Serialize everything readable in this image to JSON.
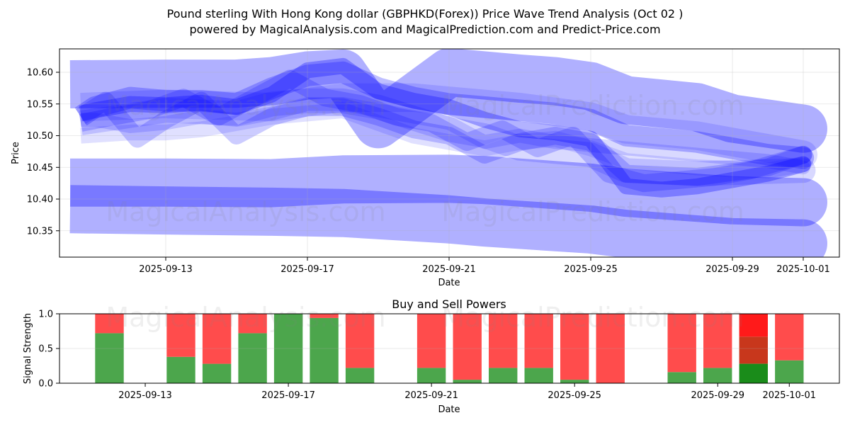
{
  "page": {
    "title_line1": "Pound sterling With Hong Kong dollar (GBPHKD(Forex)) Price Wave Trend Analysis (Oct 02 )",
    "title_line2": "powered by MagicalAnalysis.com and MagicalPrediction.com and Predict-Price.com"
  },
  "watermarks": {
    "left": "MagicalAnalysis.com",
    "right": "MagicalPrediction.com"
  },
  "colors": {
    "band": "#0000ff",
    "grid": "#b0b0b0",
    "buy": "#4ca64c",
    "sell": "#ff4c4c",
    "buy_strong": "#1a8c1a",
    "sell_strong": "#ff1a1a",
    "mixed": "#c8371c"
  },
  "chart_data": [
    {
      "type": "line",
      "title": "Pound sterling With Hong Kong dollar (GBPHKD(Forex)) Price Wave Trend Analysis (Oct 02 )",
      "xlabel": "Date",
      "ylabel": "Price",
      "x_origin": "2025-09-10",
      "x_unit": "days since x_origin",
      "xlim_days": [
        0,
        22.02
      ],
      "ylim": [
        10.3084,
        10.6369
      ],
      "grid": true,
      "x_ticks": [
        "2025-09-13",
        "2025-09-17",
        "2025-09-21",
        "2025-09-25",
        "2025-09-29",
        "2025-10-01"
      ],
      "y_ticks": [
        "10.35",
        "10.40",
        "10.45",
        "10.50",
        "10.55",
        "10.60"
      ],
      "series": [
        {
          "name": "wave-band-upper",
          "spread": 0.076,
          "opacity": 0.31,
          "points": [
            [
              0.3,
              10.581
            ],
            [
              3,
              10.582
            ],
            [
              5,
              10.582
            ],
            [
              6,
              10.586
            ],
            [
              7,
              10.595
            ],
            [
              8,
              10.598
            ],
            [
              9,
              10.518
            ],
            [
              11,
              10.6
            ],
            [
              13,
              10.59
            ],
            [
              14,
              10.586
            ],
            [
              15,
              10.578
            ],
            [
              16,
              10.556
            ],
            [
              18,
              10.545
            ],
            [
              19,
              10.527
            ],
            [
              21,
              10.511
            ]
          ]
        },
        {
          "name": "wave-band-lower-1",
          "spread": 0.076,
          "opacity": 0.31,
          "points": [
            [
              0.3,
              10.426
            ],
            [
              3,
              10.426
            ],
            [
              6,
              10.425
            ],
            [
              8,
              10.431
            ],
            [
              11,
              10.432
            ],
            [
              12,
              10.43
            ],
            [
              15,
              10.418
            ],
            [
              16,
              10.41
            ],
            [
              19,
              10.398
            ],
            [
              21,
              10.395
            ]
          ]
        },
        {
          "name": "wave-band-lower-2",
          "spread": 0.076,
          "opacity": 0.31,
          "points": [
            [
              0.3,
              10.384
            ],
            [
              3,
              10.382
            ],
            [
              6,
              10.38
            ],
            [
              8,
              10.378
            ],
            [
              11,
              10.368
            ],
            [
              12,
              10.363
            ],
            [
              15,
              10.352
            ],
            [
              16,
              10.345
            ],
            [
              19,
              10.332
            ],
            [
              21,
              10.33
            ]
          ]
        },
        {
          "name": "wave-strand-1",
          "spread": 0.025,
          "opacity": 0.3,
          "points": [
            [
              0.6,
              10.535
            ],
            [
              1,
              10.54
            ],
            [
              2,
              10.55
            ],
            [
              3,
              10.548
            ],
            [
              4,
              10.552
            ],
            [
              5,
              10.545
            ],
            [
              6,
              10.565
            ],
            [
              7,
              10.603
            ],
            [
              8,
              10.61
            ],
            [
              9,
              10.57
            ],
            [
              10,
              10.555
            ],
            [
              11,
              10.545
            ],
            [
              12,
              10.525
            ],
            [
              13,
              10.51
            ],
            [
              14,
              10.505
            ],
            [
              15,
              10.495
            ],
            [
              15.6,
              10.45
            ],
            [
              16,
              10.42
            ],
            [
              17,
              10.415
            ],
            [
              18,
              10.42
            ],
            [
              19,
              10.43
            ],
            [
              20,
              10.44
            ],
            [
              21,
              10.455
            ]
          ]
        },
        {
          "name": "wave-strand-2",
          "spread": 0.034,
          "opacity": 0.25,
          "points": [
            [
              0.6,
              10.53
            ],
            [
              1,
              10.545
            ],
            [
              2,
              10.56
            ],
            [
              3,
              10.555
            ],
            [
              4,
              10.555
            ],
            [
              5,
              10.55
            ],
            [
              6,
              10.575
            ],
            [
              7,
              10.595
            ],
            [
              8,
              10.6
            ],
            [
              9,
              10.575
            ],
            [
              10,
              10.56
            ],
            [
              11,
              10.55
            ],
            [
              12,
              10.545
            ],
            [
              13,
              10.54
            ],
            [
              14,
              10.535
            ],
            [
              15,
              10.525
            ],
            [
              16,
              10.5
            ],
            [
              17,
              10.495
            ],
            [
              18,
              10.49
            ],
            [
              19,
              10.48
            ],
            [
              20,
              10.47
            ],
            [
              21,
              10.465
            ]
          ]
        },
        {
          "name": "wave-strand-3",
          "spread": 0.028,
          "opacity": 0.2,
          "points": [
            [
              0.6,
              10.53
            ],
            [
              1.3,
              10.555
            ],
            [
              2.2,
              10.495
            ],
            [
              3,
              10.525
            ],
            [
              4,
              10.555
            ],
            [
              5,
              10.5
            ],
            [
              6,
              10.53
            ],
            [
              7,
              10.545
            ],
            [
              8,
              10.545
            ],
            [
              9,
              10.53
            ],
            [
              10,
              10.51
            ],
            [
              11,
              10.5
            ],
            [
              12,
              10.47
            ],
            [
              13,
              10.49
            ],
            [
              14,
              10.5
            ],
            [
              15,
              10.49
            ],
            [
              16,
              10.44
            ],
            [
              18,
              10.435
            ],
            [
              20,
              10.45
            ],
            [
              21,
              10.47
            ]
          ]
        },
        {
          "name": "wave-strand-4",
          "spread": 0.025,
          "opacity": 0.12,
          "points": [
            [
              0.6,
              10.5
            ],
            [
              2,
              10.505
            ],
            [
              3,
              10.505
            ],
            [
              4,
              10.51
            ],
            [
              5,
              10.52
            ],
            [
              6,
              10.53
            ],
            [
              7,
              10.535
            ],
            [
              8,
              10.54
            ],
            [
              9,
              10.52
            ],
            [
              10,
              10.5
            ],
            [
              11,
              10.49
            ],
            [
              12,
              10.48
            ],
            [
              13,
              10.49
            ],
            [
              14,
              10.495
            ],
            [
              15,
              10.48
            ],
            [
              16,
              10.46
            ],
            [
              18,
              10.45
            ],
            [
              20,
              10.445
            ],
            [
              21,
              10.455
            ]
          ]
        },
        {
          "name": "wave-strand-5",
          "spread": 0.028,
          "opacity": 0.2,
          "points": [
            [
              0.6,
              10.52
            ],
            [
              1.5,
              10.53
            ],
            [
              2.5,
              10.54
            ],
            [
              3.5,
              10.56
            ],
            [
              4.5,
              10.53
            ],
            [
              5.5,
              10.56
            ],
            [
              6.5,
              10.59
            ],
            [
              7.5,
              10.56
            ],
            [
              8.5,
              10.55
            ],
            [
              9.5,
              10.53
            ],
            [
              10.5,
              10.52
            ],
            [
              11.5,
              10.49
            ],
            [
              12.5,
              10.51
            ],
            [
              13.5,
              10.48
            ],
            [
              14.5,
              10.5
            ],
            [
              15.5,
              10.44
            ],
            [
              16.5,
              10.425
            ],
            [
              17.5,
              10.43
            ],
            [
              18.5,
              10.435
            ],
            [
              19.5,
              10.445
            ],
            [
              21,
              10.47
            ]
          ]
        },
        {
          "name": "wave-strand-6",
          "spread": 0.039,
          "opacity": 0.15,
          "points": [
            [
              0.6,
              10.52
            ],
            [
              3,
              10.54
            ],
            [
              5,
              10.535
            ],
            [
              6,
              10.55
            ],
            [
              7,
              10.555
            ],
            [
              8,
              10.555
            ],
            [
              9,
              10.545
            ],
            [
              11,
              10.51
            ],
            [
              12,
              10.5
            ],
            [
              13,
              10.48
            ],
            [
              15,
              10.47
            ],
            [
              16,
              10.445
            ],
            [
              18,
              10.44
            ],
            [
              21,
              10.445
            ]
          ]
        },
        {
          "name": "wave-strand-7",
          "spread": 0.022,
          "opacity": 0.15,
          "points": [
            [
              0.6,
              10.525
            ],
            [
              1,
              10.525
            ],
            [
              2,
              10.515
            ],
            [
              3,
              10.52
            ],
            [
              4,
              10.53
            ],
            [
              5,
              10.525
            ],
            [
              6,
              10.535
            ],
            [
              7,
              10.55
            ],
            [
              8,
              10.55
            ],
            [
              9,
              10.54
            ],
            [
              10,
              10.53
            ],
            [
              11,
              10.52
            ],
            [
              12,
              10.49
            ],
            [
              13,
              10.5
            ],
            [
              14,
              10.49
            ],
            [
              15,
              10.485
            ],
            [
              16,
              10.48
            ],
            [
              18,
              10.47
            ],
            [
              20,
              10.46
            ],
            [
              21,
              10.45
            ]
          ]
        },
        {
          "name": "wave-strand-8",
          "spread": 0.045,
          "opacity": 0.13,
          "points": [
            [
              0.6,
              10.545
            ],
            [
              3,
              10.55
            ],
            [
              6,
              10.545
            ],
            [
              8,
              10.56
            ],
            [
              10,
              10.56
            ],
            [
              11,
              10.555
            ],
            [
              13,
              10.545
            ],
            [
              15,
              10.53
            ],
            [
              16,
              10.51
            ],
            [
              18,
              10.5
            ],
            [
              20,
              10.48
            ],
            [
              21,
              10.47
            ]
          ]
        }
      ]
    },
    {
      "type": "bar",
      "title": "Buy and Sell Powers",
      "xlabel": "Date",
      "ylabel": "Signal Strength",
      "x_origin": "2025-09-10",
      "xlim_days": [
        0.604,
        22.4
      ],
      "ylim": [
        0,
        1
      ],
      "grid": true,
      "x_ticks": [
        "2025-09-13",
        "2025-09-17",
        "2025-09-21",
        "2025-09-25",
        "2025-09-29",
        "2025-10-01"
      ],
      "y_ticks": [
        "0.0",
        "0.5",
        "1.0"
      ],
      "series_names": [
        "Buy",
        "Sell"
      ],
      "bars": [
        {
          "date": "2025-09-12",
          "buy": 0.72,
          "sell": 0.28
        },
        {
          "date": "2025-09-14",
          "buy": 0.38,
          "sell": 0.62
        },
        {
          "date": "2025-09-15",
          "buy": 0.28,
          "sell": 0.72
        },
        {
          "date": "2025-09-16",
          "buy": 0.72,
          "sell": 0.28
        },
        {
          "date": "2025-09-17",
          "buy": 1.0,
          "sell": 0.0
        },
        {
          "date": "2025-09-18",
          "buy": 0.94,
          "sell": 0.06
        },
        {
          "date": "2025-09-19",
          "buy": 0.22,
          "sell": 0.78
        },
        {
          "date": "2025-09-21",
          "buy": 0.22,
          "sell": 0.78
        },
        {
          "date": "2025-09-22",
          "buy": 0.05,
          "sell": 0.95
        },
        {
          "date": "2025-09-23",
          "buy": 0.22,
          "sell": 0.78
        },
        {
          "date": "2025-09-24",
          "buy": 0.22,
          "sell": 0.78
        },
        {
          "date": "2025-09-25",
          "buy": 0.05,
          "sell": 0.95
        },
        {
          "date": "2025-09-26",
          "buy": 0.0,
          "sell": 1.0
        },
        {
          "date": "2025-09-28",
          "buy": 0.16,
          "sell": 0.84
        },
        {
          "date": "2025-09-29",
          "buy": 0.22,
          "sell": 0.78
        },
        {
          "date": "2025-09-30",
          "buy": 0.28,
          "sell": 0.72,
          "highlight": true,
          "overlap_top": 0.67
        },
        {
          "date": "2025-10-01",
          "buy": 0.33,
          "sell": 0.67
        }
      ]
    }
  ]
}
